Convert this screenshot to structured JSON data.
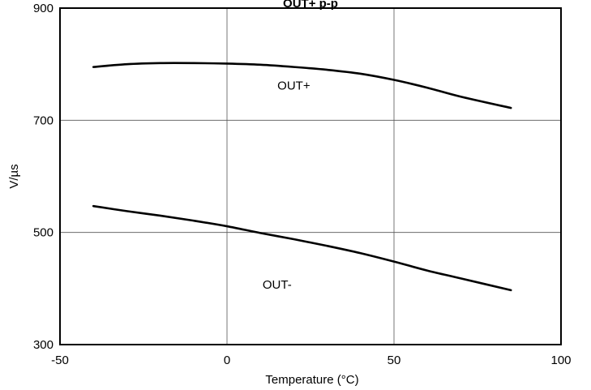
{
  "chart_data": {
    "type": "line",
    "title": "OUT+    p-p",
    "xlabel": "Temperature (°C)",
    "ylabel": "V/µs",
    "xlim": [
      -50,
      100
    ],
    "ylim": [
      300,
      900
    ],
    "xticks": [
      -50,
      0,
      50,
      100
    ],
    "yticks": [
      300,
      500,
      700,
      900
    ],
    "xtick_labels": [
      "-50",
      "0",
      "50",
      "100"
    ],
    "ytick_labels": [
      "300",
      "500",
      "700",
      "900"
    ],
    "grid": true,
    "colors": {
      "line": "#000000",
      "grid": "#555555",
      "frame": "#000000",
      "background": "#ffffff"
    },
    "series": [
      {
        "name": "OUT+",
        "x": [
          -40,
          -30,
          -20,
          -10,
          0,
          10,
          20,
          30,
          40,
          50,
          60,
          70,
          85
        ],
        "y": [
          795,
          800,
          802,
          802,
          801,
          799,
          795,
          790,
          783,
          772,
          758,
          742,
          722
        ]
      },
      {
        "name": "OUT-",
        "x": [
          -40,
          -30,
          -20,
          -10,
          0,
          10,
          20,
          30,
          40,
          50,
          60,
          70,
          85
        ],
        "y": [
          547,
          538,
          530,
          521,
          511,
          499,
          488,
          476,
          463,
          448,
          432,
          418,
          397
        ]
      }
    ],
    "series_labels": [
      {
        "text": "OUT+",
        "x": 20,
        "y": 755
      },
      {
        "text": "OUT-",
        "x": 15,
        "y": 400
      }
    ]
  }
}
